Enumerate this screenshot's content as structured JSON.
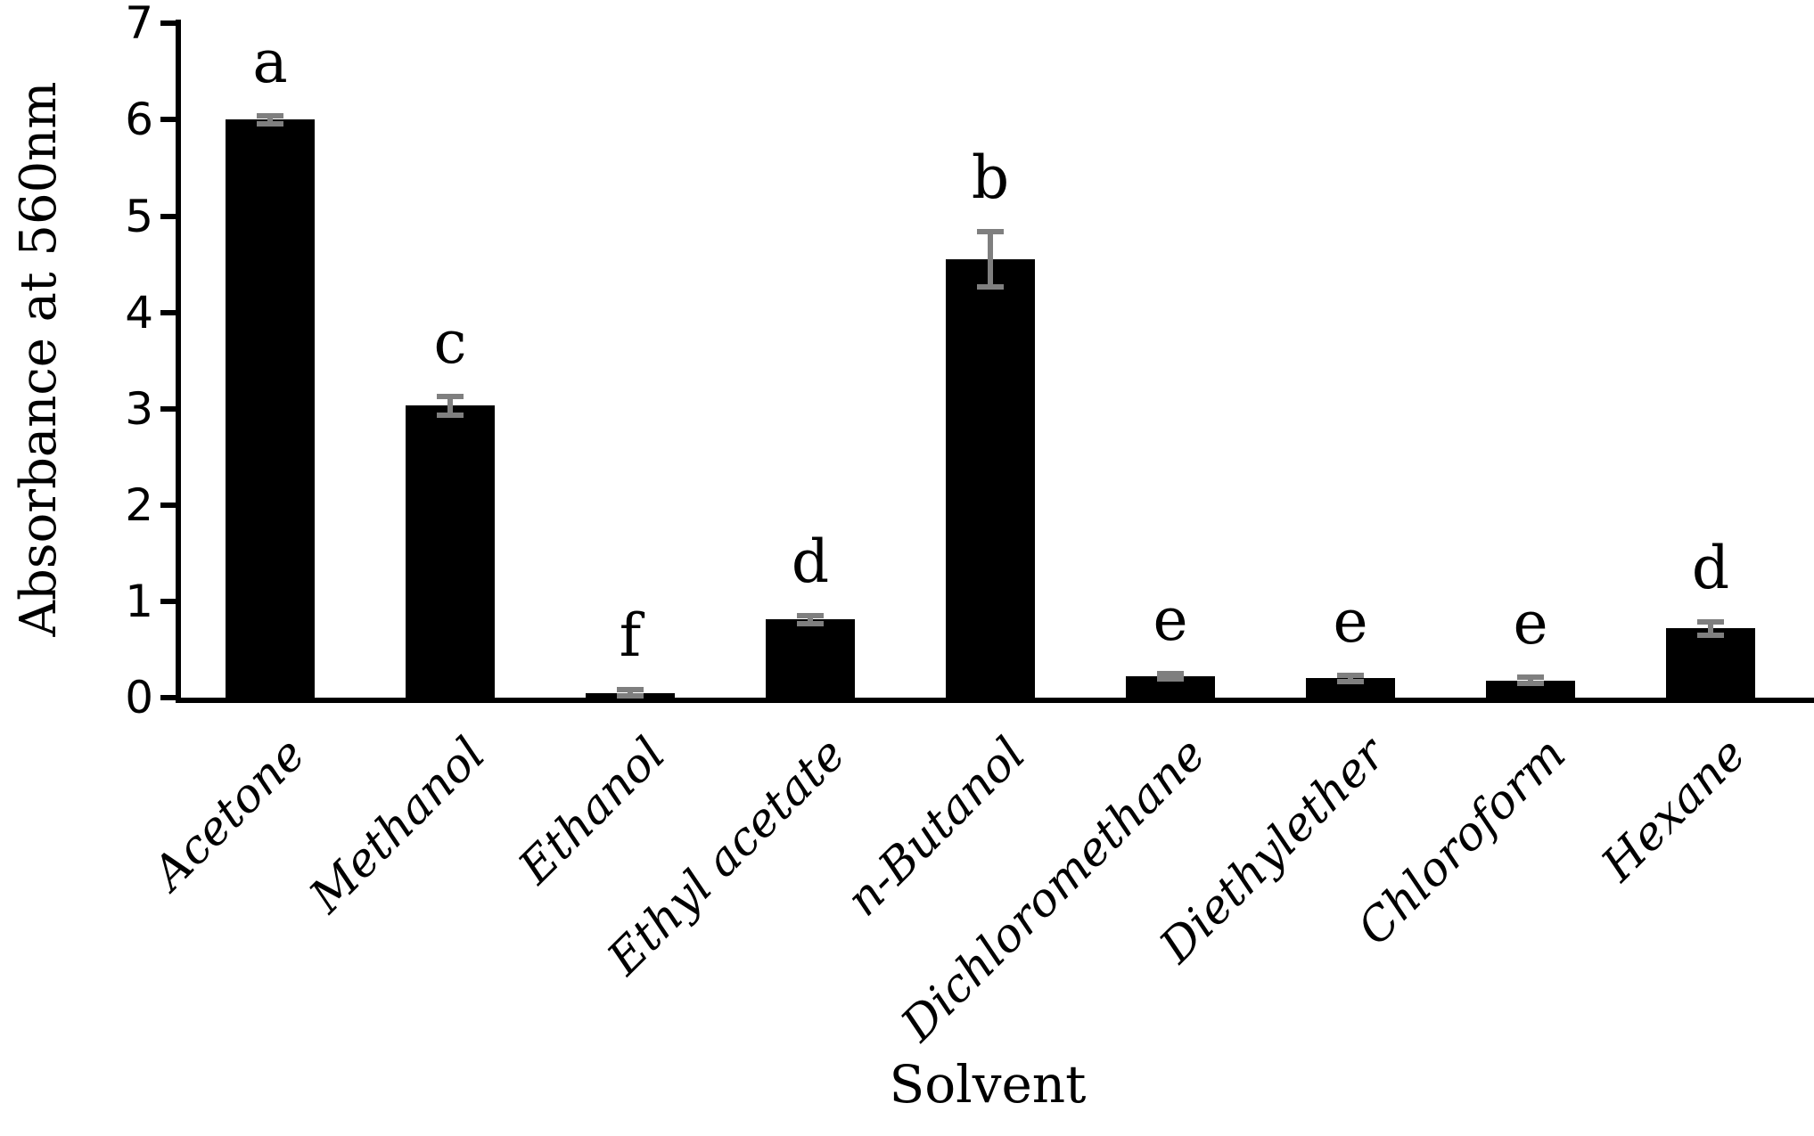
{
  "chart_data": {
    "type": "bar",
    "title": "",
    "xlabel": "Solvent",
    "ylabel": "Absorbance at 560nm",
    "categories": [
      "Acetone",
      "Methanol",
      "Ethanol",
      "Ethyl acetate",
      "n-Butanol",
      "Dichloromethane",
      "Diethylether",
      "Chloroform",
      "Hexane"
    ],
    "values": [
      6.0,
      3.03,
      0.05,
      0.81,
      4.55,
      0.22,
      0.2,
      0.18,
      0.72
    ],
    "errors": [
      0.04,
      0.1,
      0.03,
      0.04,
      0.29,
      0.03,
      0.03,
      0.03,
      0.07
    ],
    "sig_letters": [
      "a",
      "c",
      "f",
      "d",
      "b",
      "e",
      "e",
      "e",
      "d"
    ],
    "yticks": [
      0,
      1,
      2,
      3,
      4,
      5,
      6,
      7
    ],
    "ylim": [
      0,
      7
    ],
    "grid": "off",
    "legend": "none",
    "bar_color": "#000000",
    "error_bar_color": "#7f7f7f",
    "axis_color": "#000000",
    "background_color": "#ffffff"
  }
}
